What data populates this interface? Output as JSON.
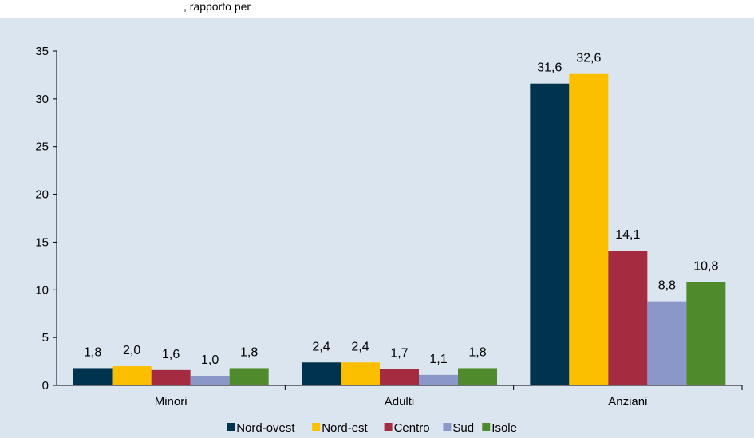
{
  "header": {
    "partial_text": ", rapporto per"
  },
  "chart_data": {
    "type": "bar",
    "categories": [
      "Minori",
      "Adulti",
      "Anziani"
    ],
    "series": [
      {
        "name": "Nord-ovest",
        "color": "#00334e",
        "values": [
          1.8,
          2.4,
          31.6
        ],
        "labels": [
          "1,8",
          "2,4",
          "31,6"
        ]
      },
      {
        "name": "Nord-est",
        "color": "#fbbf00",
        "values": [
          2.0,
          2.4,
          32.6
        ],
        "labels": [
          "2,0",
          "2,4",
          "32,6"
        ]
      },
      {
        "name": "Centro",
        "color": "#a42b40",
        "values": [
          1.6,
          1.7,
          14.1
        ],
        "labels": [
          "1,6",
          "1,7",
          "14,1"
        ]
      },
      {
        "name": "Sud",
        "color": "#8b96c9",
        "values": [
          1.0,
          1.1,
          8.8
        ],
        "labels": [
          "1,0",
          "1,1",
          "8,8"
        ]
      },
      {
        "name": "Isole",
        "color": "#4f8a2c",
        "values": [
          1.8,
          1.8,
          10.8
        ],
        "labels": [
          "1,8",
          "1,8",
          "10,8"
        ]
      }
    ],
    "ylim": [
      0,
      35
    ],
    "yticks": [
      0,
      5,
      10,
      15,
      20,
      25,
      30,
      35
    ],
    "grid": false,
    "legend_position": "bottom"
  }
}
